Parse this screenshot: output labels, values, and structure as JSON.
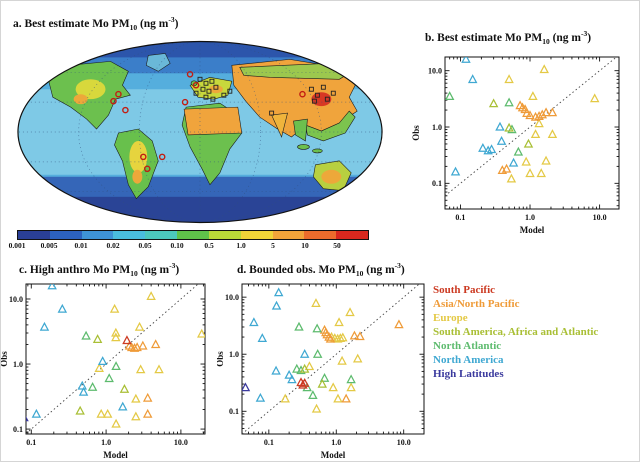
{
  "panels": {
    "a": {
      "pre": "a. Best estimate Mo PM",
      "sub": "10",
      "mid": " (ng m",
      "sup": "-3",
      "end": ")"
    },
    "b": {
      "pre": "b. Best estimate Mo PM",
      "sub": "10",
      "mid": " (ng m",
      "sup": "-3",
      "end": ")"
    },
    "c": {
      "pre": "c. High anthro Mo PM",
      "sub": "10",
      "mid": " (ng m",
      "sup": "-3",
      "end": ")"
    },
    "d": {
      "pre": "d. Bounded obs. Mo PM",
      "sub": "10",
      "mid": " (ng m",
      "sup": "-3",
      "end": ")"
    }
  },
  "legend": {
    "items": [
      {
        "label": "South Pacific",
        "color": "#cc3a22"
      },
      {
        "label": "Asia/North Pacific",
        "color": "#ef9b38"
      },
      {
        "label": "Europe",
        "color": "#e4c945"
      },
      {
        "label": "South America, Africa and Atlantic",
        "color": "#a9bf35"
      },
      {
        "label": "North Atlantic",
        "color": "#5dbb6e"
      },
      {
        "label": "North America",
        "color": "#3fa8d2"
      },
      {
        "label": "High Latitudes",
        "color": "#3b3a9e"
      }
    ]
  },
  "chart_data": [
    {
      "id": "a",
      "type": "heatmap",
      "title": "a. Best estimate Mo PM10 (ng m-3)",
      "projection": "global world map, Robinson-style ellipse",
      "colorbar": {
        "labels": [
          "0.001",
          "0.005",
          "0.01",
          "0.02",
          "0.05",
          "0.10",
          "0.5",
          "1.0",
          "5",
          "10",
          "50"
        ],
        "colors": [
          "#2a3f96",
          "#2c62bf",
          "#3e93d6",
          "#4abede",
          "#4cc8bc",
          "#5fc24a",
          "#b8d838",
          "#f0d438",
          "#f2a43a",
          "#ec6c2c",
          "#d8281e"
        ]
      },
      "markers": {
        "site_circles": [
          [
            103,
            64
          ],
          [
            115,
            73
          ],
          [
            133,
            120
          ],
          [
            137,
            132
          ],
          [
            152,
            120
          ],
          [
            180,
            37
          ],
          [
            186,
            48
          ],
          [
            175,
            65
          ],
          [
            293,
            57
          ],
          [
            108,
            57
          ]
        ],
        "site_squares": [
          [
            190,
            42
          ],
          [
            196,
            46
          ],
          [
            202,
            44
          ],
          [
            193,
            52
          ],
          [
            199,
            54
          ],
          [
            206,
            50
          ],
          [
            196,
            60
          ],
          [
            203,
            62
          ],
          [
            186,
            56
          ],
          [
            214,
            58
          ],
          [
            220,
            54
          ],
          [
            302,
            52
          ],
          [
            308,
            58
          ],
          [
            314,
            50
          ],
          [
            305,
            64
          ],
          [
            318,
            62
          ],
          [
            324,
            56
          ],
          [
            262,
            76
          ]
        ]
      }
    },
    {
      "id": "b",
      "type": "scatter",
      "title": "b. Best estimate Mo PM10 (ng m-3)",
      "xlabel": "Model",
      "ylabel": "Obs",
      "scale": "log-log",
      "identity_line": true,
      "xlim": [
        0.06,
        19
      ],
      "ylim": [
        0.035,
        17.5
      ],
      "xticks": [
        0.1,
        1,
        10
      ],
      "yticks": [
        0.1,
        1,
        10
      ],
      "tick_labels": [
        "0.1",
        "1.0",
        "10.0"
      ],
      "series": [
        {
          "name": "Europe",
          "color": "#e4c945",
          "points": [
            [
              1.6,
              10.5
            ],
            [
              0.5,
              7
            ],
            [
              1.1,
              3.5
            ],
            [
              8.5,
              3.2
            ],
            [
              1.35,
              1.15
            ],
            [
              1.2,
              0.74
            ],
            [
              2.1,
              0.74
            ],
            [
              0.88,
              0.24
            ],
            [
              1.7,
              0.25
            ],
            [
              1.0,
              0.15
            ],
            [
              1.45,
              0.15
            ],
            [
              0.54,
              0.12
            ]
          ]
        },
        {
          "name": "Asia/North Pacific",
          "color": "#ef9b38",
          "points": [
            [
              0.72,
              2.4
            ],
            [
              0.78,
              2.2
            ],
            [
              0.85,
              2.05
            ],
            [
              0.9,
              1.75
            ],
            [
              1.0,
              1.6
            ],
            [
              1.2,
              1.5
            ],
            [
              1.35,
              1.55
            ],
            [
              1.5,
              1.65
            ],
            [
              1.7,
              1.8
            ],
            [
              2.1,
              1.8
            ],
            [
              0.4,
              0.17
            ],
            [
              0.46,
              0.18
            ]
          ]
        },
        {
          "name": "North America",
          "color": "#3fa8d2",
          "points": [
            [
              0.12,
              16
            ],
            [
              0.15,
              7
            ],
            [
              0.37,
              1.0
            ],
            [
              0.39,
              0.56
            ],
            [
              0.21,
              0.42
            ],
            [
              0.25,
              0.38
            ],
            [
              0.28,
              0.4
            ],
            [
              0.58,
              0.23
            ],
            [
              0.085,
              0.16
            ]
          ]
        },
        {
          "name": "North Atlantic",
          "color": "#5dbb6e",
          "points": [
            [
              0.07,
              3.5
            ],
            [
              0.5,
              2.7
            ],
            [
              0.55,
              0.9
            ],
            [
              0.68,
              0.36
            ]
          ]
        },
        {
          "name": "South America, Africa and Atlantic",
          "color": "#a9bf35",
          "points": [
            [
              0.3,
              2.6
            ],
            [
              0.5,
              0.96
            ],
            [
              0.95,
              0.5
            ]
          ]
        },
        {
          "name": "High Latitudes",
          "color": "#3b3a9e",
          "points": [
            [
              0.048,
              0.13
            ]
          ]
        }
      ]
    },
    {
      "id": "c",
      "type": "scatter",
      "title": "c. High anthro Mo PM10 (ng m-3)",
      "xlabel": "Model",
      "ylabel": "Obs",
      "scale": "log-log",
      "identity_line": true,
      "xlim": [
        0.085,
        21
      ],
      "ylim": [
        0.084,
        17
      ],
      "xticks": [
        0.1,
        1,
        10
      ],
      "yticks": [
        0.1,
        1,
        10
      ],
      "tick_labels": [
        "0.1",
        "1.0",
        "10.0"
      ],
      "series": [
        {
          "name": "Europe",
          "color": "#e4c945",
          "points": [
            [
              4,
              11
            ],
            [
              1.3,
              7
            ],
            [
              2.8,
              3.7
            ],
            [
              19,
              2.9
            ],
            [
              1.35,
              3.0
            ],
            [
              1.35,
              2.55
            ],
            [
              0.81,
              0.86
            ],
            [
              2.9,
              0.82
            ],
            [
              5.1,
              0.82
            ],
            [
              2.5,
              0.29
            ],
            [
              0.86,
              0.17
            ],
            [
              1.05,
              0.17
            ],
            [
              2.5,
              0.155
            ],
            [
              1.36,
              0.12
            ]
          ]
        },
        {
          "name": "Asia/North Pacific",
          "color": "#ef9b38",
          "points": [
            [
              2.05,
              1.9
            ],
            [
              2.2,
              1.8
            ],
            [
              2.4,
              1.75
            ],
            [
              2.6,
              1.8
            ],
            [
              3.1,
              1.9
            ],
            [
              4.6,
              2.0
            ],
            [
              3.6,
              0.3
            ],
            [
              3.6,
              0.17
            ]
          ]
        },
        {
          "name": "North America",
          "color": "#3fa8d2",
          "points": [
            [
              0.19,
              16
            ],
            [
              0.26,
              7
            ],
            [
              0.15,
              3.7
            ],
            [
              0.9,
              1.1
            ],
            [
              0.48,
              0.46
            ],
            [
              0.5,
              0.37
            ],
            [
              1.67,
              0.22
            ],
            [
              0.117,
              0.17
            ]
          ]
        },
        {
          "name": "North Atlantic",
          "color": "#5dbb6e",
          "points": [
            [
              0.54,
              2.7
            ],
            [
              1.36,
              0.92
            ],
            [
              1.1,
              0.6
            ],
            [
              0.66,
              0.44
            ]
          ]
        },
        {
          "name": "South America, Africa and Atlantic",
          "color": "#a9bf35",
          "points": [
            [
              0.77,
              2.4
            ],
            [
              1.76,
              0.41
            ],
            [
              0.45,
              0.19
            ]
          ]
        },
        {
          "name": "South Pacific",
          "color": "#cc3a22",
          "points": [
            [
              1.9,
              2.3
            ]
          ]
        },
        {
          "name": "High Latitudes",
          "color": "#3b3a9e",
          "points": [
            [
              0.08,
              0.15
            ]
          ]
        }
      ]
    },
    {
      "id": "d",
      "type": "scatter",
      "title": "d. Bounded obs. Mo PM10 (ng m-3)",
      "xlabel": "Model",
      "ylabel": "Obs",
      "scale": "log-log",
      "identity_line": true,
      "xlim": [
        0.04,
        20
      ],
      "ylim": [
        0.04,
        17
      ],
      "xticks": [
        0.1,
        1,
        10
      ],
      "yticks": [
        0.1,
        1,
        10
      ],
      "tick_labels": [
        "0.1",
        "1.0",
        "10.0"
      ],
      "series": [
        {
          "name": "Europe",
          "color": "#e4c945",
          "points": [
            [
              0.5,
              7.8
            ],
            [
              1.6,
              5.4
            ],
            [
              1.1,
              3.6
            ],
            [
              0.85,
              2.0
            ],
            [
              0.95,
              1.9
            ],
            [
              1.05,
              1.85
            ],
            [
              1.15,
              1.9
            ],
            [
              1.25,
              1.95
            ],
            [
              1.22,
              0.76
            ],
            [
              2.08,
              0.83
            ],
            [
              0.4,
              0.61
            ],
            [
              0.9,
              0.26
            ],
            [
              1.66,
              0.26
            ],
            [
              1.06,
              0.165
            ],
            [
              0.51,
              0.11
            ],
            [
              0.175,
              0.165
            ]
          ]
        },
        {
          "name": "Asia/North Pacific",
          "color": "#ef9b38",
          "points": [
            [
              0.67,
              2.65
            ],
            [
              0.7,
              2.4
            ],
            [
              0.73,
              2.2
            ],
            [
              0.78,
              2.0
            ],
            [
              0.82,
              1.85
            ],
            [
              1.86,
              2.1
            ],
            [
              2.25,
              2.05
            ],
            [
              8.5,
              3.3
            ],
            [
              1.4,
              0.165
            ]
          ]
        },
        {
          "name": "North America",
          "color": "#3fa8d2",
          "points": [
            [
              0.14,
              12
            ],
            [
              0.13,
              7
            ],
            [
              0.06,
              3.6
            ],
            [
              0.08,
              1.9
            ],
            [
              0.34,
              1.0
            ],
            [
              0.128,
              0.51
            ],
            [
              0.2,
              0.43
            ],
            [
              0.22,
              0.36
            ],
            [
              0.075,
              0.17
            ]
          ]
        },
        {
          "name": "North Atlantic",
          "color": "#5dbb6e",
          "points": [
            [
              0.28,
              3.0
            ],
            [
              0.52,
              2.8
            ],
            [
              0.53,
              1.0
            ],
            [
              0.26,
              0.55
            ],
            [
              0.3,
              0.52
            ],
            [
              0.67,
              0.38
            ],
            [
              1.66,
              0.36
            ],
            [
              0.37,
              0.26
            ],
            [
              0.45,
              0.19
            ]
          ]
        },
        {
          "name": "South America, Africa and Atlantic",
          "color": "#a9bf35",
          "points": [
            [
              0.34,
              0.55
            ],
            [
              0.62,
              0.3
            ]
          ]
        },
        {
          "name": "South Pacific",
          "color": "#cc3a22",
          "points": [
            [
              0.3,
              0.32
            ],
            [
              0.32,
              0.29
            ],
            [
              0.34,
              0.31
            ]
          ]
        },
        {
          "name": "High Latitudes",
          "color": "#3b3a9e",
          "points": [
            [
              0.045,
              0.26
            ]
          ]
        }
      ]
    }
  ]
}
